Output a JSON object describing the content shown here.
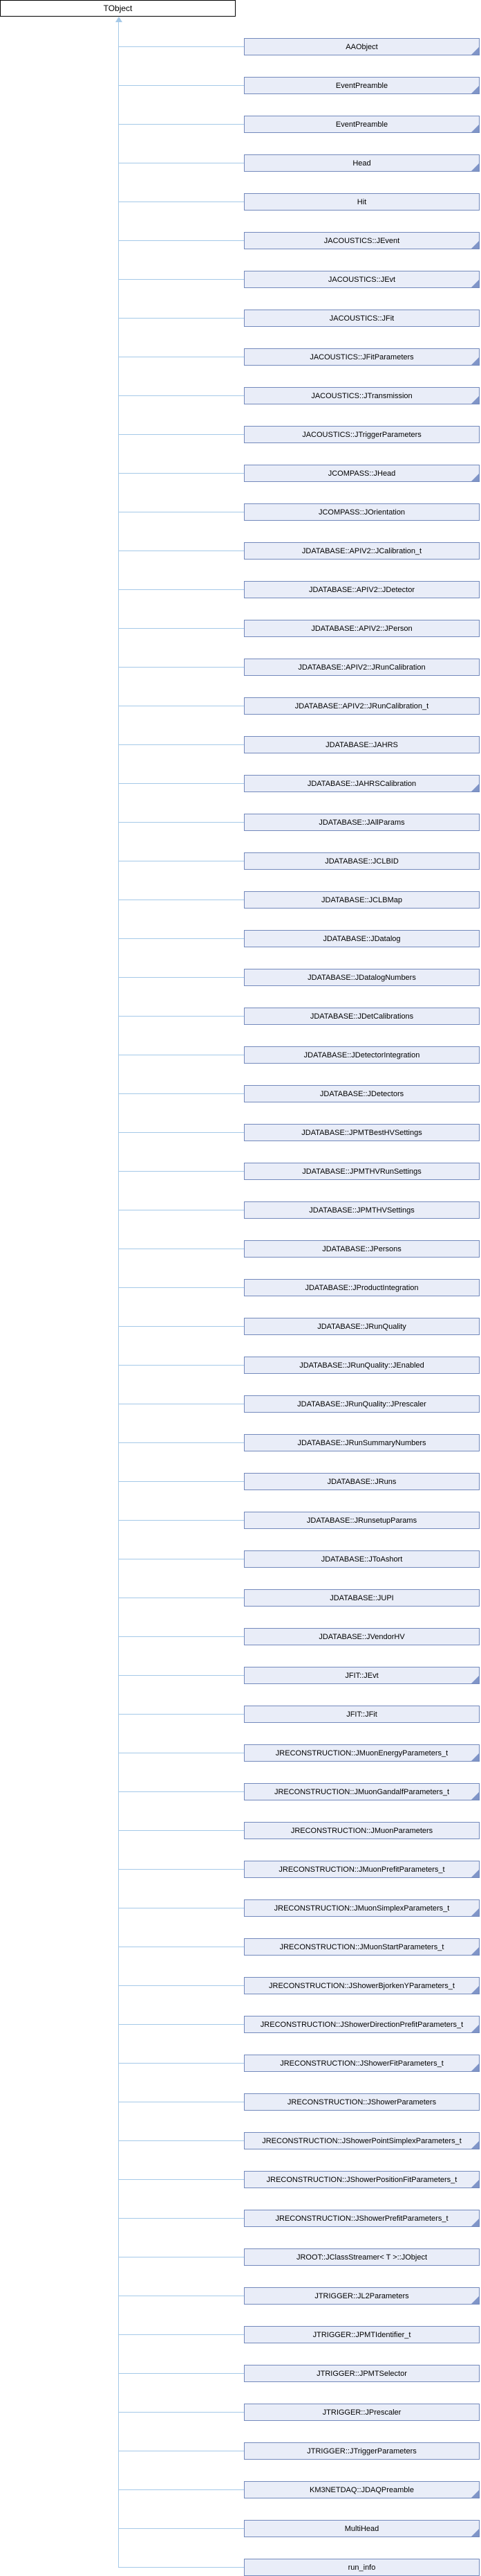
{
  "diagram": {
    "type": "class-inheritance",
    "root": {
      "label": "TObject"
    },
    "children": [
      {
        "label": "AAObject",
        "truncated": true
      },
      {
        "label": "EventPreamble",
        "truncated": true
      },
      {
        "label": "EventPreamble",
        "truncated": true
      },
      {
        "label": "Head",
        "truncated": true
      },
      {
        "label": "Hit",
        "truncated": false
      },
      {
        "label": "JACOUSTICS::JEvent",
        "truncated": true
      },
      {
        "label": "JACOUSTICS::JEvt",
        "truncated": true
      },
      {
        "label": "JACOUSTICS::JFit",
        "truncated": false
      },
      {
        "label": "JACOUSTICS::JFitParameters",
        "truncated": true
      },
      {
        "label": "JACOUSTICS::JTransmission",
        "truncated": true
      },
      {
        "label": "JACOUSTICS::JTriggerParameters",
        "truncated": false
      },
      {
        "label": "JCOMPASS::JHead",
        "truncated": true
      },
      {
        "label": "JCOMPASS::JOrientation",
        "truncated": false
      },
      {
        "label": "JDATABASE::APIV2::JCalibration_t",
        "truncated": false
      },
      {
        "label": "JDATABASE::APIV2::JDetector",
        "truncated": false
      },
      {
        "label": "JDATABASE::APIV2::JPerson",
        "truncated": false
      },
      {
        "label": "JDATABASE::APIV2::JRunCalibration",
        "truncated": false
      },
      {
        "label": "JDATABASE::APIV2::JRunCalibration_t",
        "truncated": false
      },
      {
        "label": "JDATABASE::JAHRS",
        "truncated": false
      },
      {
        "label": "JDATABASE::JAHRSCalibration",
        "truncated": true
      },
      {
        "label": "JDATABASE::JAllParams",
        "truncated": false
      },
      {
        "label": "JDATABASE::JCLBID",
        "truncated": false
      },
      {
        "label": "JDATABASE::JCLBMap",
        "truncated": false
      },
      {
        "label": "JDATABASE::JDatalog",
        "truncated": false
      },
      {
        "label": "JDATABASE::JDatalogNumbers",
        "truncated": false
      },
      {
        "label": "JDATABASE::JDetCalibrations",
        "truncated": false
      },
      {
        "label": "JDATABASE::JDetectorIntegration",
        "truncated": false
      },
      {
        "label": "JDATABASE::JDetectors",
        "truncated": false
      },
      {
        "label": "JDATABASE::JPMTBestHVSettings",
        "truncated": false
      },
      {
        "label": "JDATABASE::JPMTHVRunSettings",
        "truncated": false
      },
      {
        "label": "JDATABASE::JPMTHVSettings",
        "truncated": false
      },
      {
        "label": "JDATABASE::JPersons",
        "truncated": false
      },
      {
        "label": "JDATABASE::JProductIntegration",
        "truncated": false
      },
      {
        "label": "JDATABASE::JRunQuality",
        "truncated": false
      },
      {
        "label": "JDATABASE::JRunQuality::JEnabled",
        "truncated": false
      },
      {
        "label": "JDATABASE::JRunQuality::JPrescaler",
        "truncated": false
      },
      {
        "label": "JDATABASE::JRunSummaryNumbers",
        "truncated": false
      },
      {
        "label": "JDATABASE::JRuns",
        "truncated": false
      },
      {
        "label": "JDATABASE::JRunsetupParams",
        "truncated": false
      },
      {
        "label": "JDATABASE::JToAshort",
        "truncated": false
      },
      {
        "label": "JDATABASE::JUPI",
        "truncated": false
      },
      {
        "label": "JDATABASE::JVendorHV",
        "truncated": false
      },
      {
        "label": "JFIT::JEvt",
        "truncated": true
      },
      {
        "label": "JFIT::JFit",
        "truncated": false
      },
      {
        "label": "JRECONSTRUCTION::JMuonEnergyParameters_t",
        "truncated": true
      },
      {
        "label": "JRECONSTRUCTION::JMuonGandalfParameters_t",
        "truncated": true
      },
      {
        "label": "JRECONSTRUCTION::JMuonParameters",
        "truncated": false
      },
      {
        "label": "JRECONSTRUCTION::JMuonPrefitParameters_t",
        "truncated": true
      },
      {
        "label": "JRECONSTRUCTION::JMuonSimplexParameters_t",
        "truncated": true
      },
      {
        "label": "JRECONSTRUCTION::JMuonStartParameters_t",
        "truncated": true
      },
      {
        "label": "JRECONSTRUCTION::JShowerBjorkenYParameters_t",
        "truncated": true
      },
      {
        "label": "JRECONSTRUCTION::JShowerDirectionPrefitParameters_t",
        "truncated": true
      },
      {
        "label": "JRECONSTRUCTION::JShowerFitParameters_t",
        "truncated": true
      },
      {
        "label": "JRECONSTRUCTION::JShowerParameters",
        "truncated": false
      },
      {
        "label": "JRECONSTRUCTION::JShowerPointSimplexParameters_t",
        "truncated": true
      },
      {
        "label": "JRECONSTRUCTION::JShowerPositionFitParameters_t",
        "truncated": true
      },
      {
        "label": "JRECONSTRUCTION::JShowerPrefitParameters_t",
        "truncated": true
      },
      {
        "label": "JROOT::JClassStreamer< T >::JObject",
        "truncated": false
      },
      {
        "label": "JTRIGGER::JL2Parameters",
        "truncated": true
      },
      {
        "label": "JTRIGGER::JPMTIdentifier_t",
        "truncated": false
      },
      {
        "label": "JTRIGGER::JPMTSelector",
        "truncated": false
      },
      {
        "label": "JTRIGGER::JPrescaler",
        "truncated": false
      },
      {
        "label": "JTRIGGER::JTriggerParameters",
        "truncated": false
      },
      {
        "label": "KM3NETDAQ::JDAQPreamble",
        "truncated": true
      },
      {
        "label": "MultiHead",
        "truncated": true
      },
      {
        "label": "run_info",
        "truncated": false
      }
    ]
  },
  "colors": {
    "root_fill": "#ffffff",
    "root_border": "#000000",
    "node_fill": "#e9edf8",
    "node_border": "#7389bc",
    "corner": "#8095c8",
    "line": "#a5c9e8",
    "text": "#000000"
  }
}
